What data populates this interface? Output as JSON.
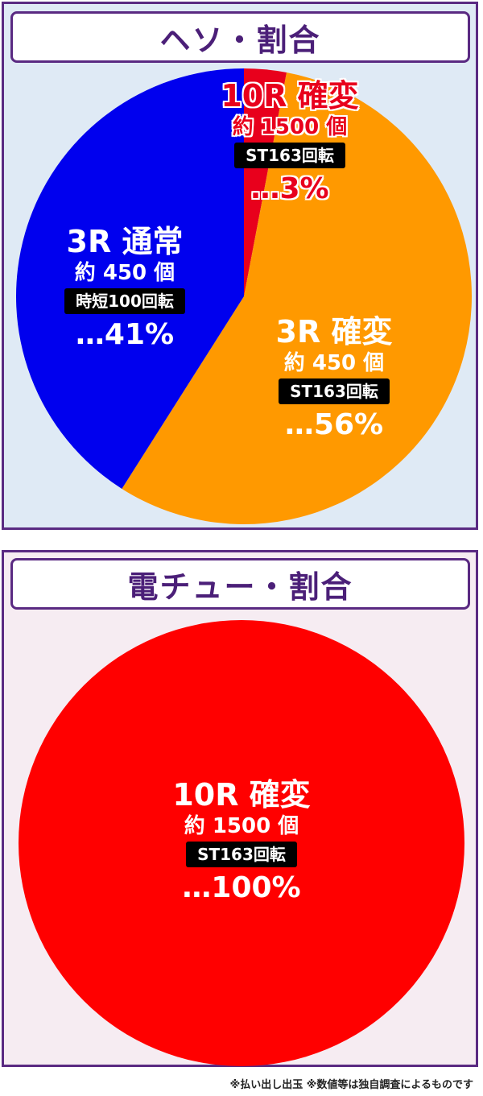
{
  "panels": [
    {
      "title": "ヘソ・割合",
      "labels": {
        "s10r": {
          "head": "10R 確変",
          "sub": "約 1500 個",
          "badge": "ST163回転",
          "pct": "…3%"
        },
        "s3rn": {
          "head": "3R 通常",
          "sub": "約 450 個",
          "badge": "時短100回転",
          "pct": "…41%"
        },
        "s3rk": {
          "head": "3R 確変",
          "sub": "約 450 個",
          "badge": "ST163回転",
          "pct": "…56%"
        }
      }
    },
    {
      "title": "電チュー・割合",
      "labels": {
        "s10r": {
          "head": "10R 確変",
          "sub": "約 1500 個",
          "badge": "ST163回転",
          "pct": "…100%"
        }
      }
    }
  ],
  "chart_data": [
    {
      "type": "pie",
      "title": "ヘソ・割合",
      "slices": [
        {
          "label": "10R 確変",
          "value": 3,
          "color": "#e8001c"
        },
        {
          "label": "3R 確変",
          "value": 56,
          "color": "#ff9900"
        },
        {
          "label": "3R 通常",
          "value": 41,
          "color": "#0000ee"
        }
      ]
    },
    {
      "type": "pie",
      "title": "電チュー・割合",
      "slices": [
        {
          "label": "10R 確変",
          "value": 100,
          "color": "#ff0000"
        }
      ]
    }
  ],
  "footnote": "※払い出し出玉 ※数値等は独自調査によるものです"
}
